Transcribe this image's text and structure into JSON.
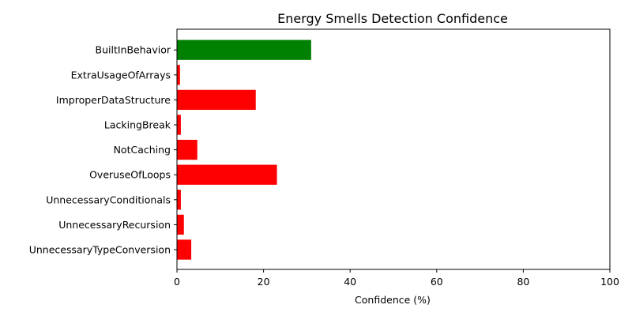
{
  "chart_data": {
    "type": "bar",
    "orientation": "horizontal",
    "title": "Energy Smells Detection Confidence",
    "xlabel": "Confidence (%)",
    "ylabel": "",
    "xlim": [
      0,
      100
    ],
    "xticks": [
      0,
      20,
      40,
      60,
      80,
      100
    ],
    "grid": false,
    "categories": [
      "BuiltInBehavior",
      "ExtraUsageOfArrays",
      "ImproperDataStructure",
      "LackingBreak",
      "NotCaching",
      "OveruseOfLoops",
      "UnnecessaryConditionals",
      "UnnecessaryRecursion",
      "UnnecessaryTypeConversion"
    ],
    "values": [
      31,
      0.7,
      18.2,
      0.9,
      4.7,
      23.1,
      0.9,
      1.6,
      3.3
    ],
    "colors": [
      "#008000",
      "#ff0000",
      "#ff0000",
      "#ff0000",
      "#ff0000",
      "#ff0000",
      "#ff0000",
      "#ff0000",
      "#ff0000"
    ]
  }
}
